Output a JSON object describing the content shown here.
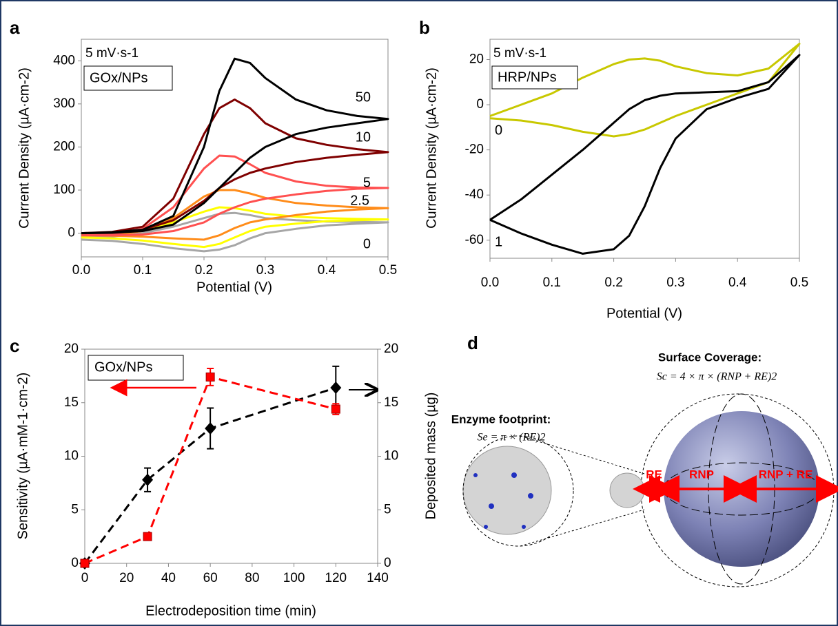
{
  "chart_data": [
    {
      "type": "line",
      "panel_label": "a",
      "annotations": [
        "5 mV·s-1",
        "GOx/NPs"
      ],
      "x_label": "Potential (V)",
      "y_label": "Current Density (µA·cm-2)",
      "xlim": [
        0,
        0.5
      ],
      "xticks": [
        {
          "value": 0,
          "label": "0.0"
        },
        0.1,
        0.2,
        0.3,
        0.4,
        0.5
      ],
      "ylim": [
        -55,
        450
      ],
      "yticks": [
        0,
        100,
        200,
        300,
        400
      ],
      "x": [
        0,
        0.05,
        0.1,
        0.15,
        0.2,
        0.225,
        0.25,
        0.275,
        0.3,
        0.35,
        0.4,
        0.45,
        0.5,
        0.45,
        0.4,
        0.35,
        0.3,
        0.275,
        0.25,
        0.225,
        0.2,
        0.15,
        0.1,
        0.05,
        0
      ],
      "series": [
        {
          "color": "#a6a6a6",
          "values": [
            -10,
            -8,
            0,
            15,
            35,
            45,
            47,
            42,
            35,
            30,
            27,
            26,
            25,
            22,
            18,
            10,
            0,
            -12,
            -28,
            -38,
            -42,
            -35,
            -25,
            -18,
            -15
          ]
        },
        {
          "name": "0",
          "color": "#ffff00",
          "label_color": "#d4d400",
          "values": [
            -3,
            -2,
            8,
            25,
            50,
            60,
            58,
            52,
            45,
            38,
            35,
            33,
            32,
            30,
            28,
            22,
            15,
            5,
            -10,
            -25,
            -32,
            -25,
            -17,
            -12,
            -10
          ]
        },
        {
          "name": "2.5",
          "color": "#ff8c1a",
          "label_color": "#ff8c1a",
          "values": [
            -5,
            -4,
            5,
            35,
            85,
            100,
            100,
            92,
            82,
            70,
            64,
            60,
            58,
            55,
            50,
            42,
            32,
            25,
            12,
            -5,
            -15,
            -12,
            -8,
            -6,
            -5
          ]
        },
        {
          "name": "5",
          "color": "#ff5050",
          "label_color": "#e02020",
          "values": [
            -5,
            -3,
            10,
            60,
            150,
            180,
            178,
            160,
            140,
            120,
            110,
            106,
            105,
            103,
            98,
            90,
            80,
            72,
            60,
            45,
            25,
            5,
            -3,
            -5,
            -5
          ]
        },
        {
          "name": "10",
          "color": "#7f0000",
          "label_color": "#7f0000",
          "values": [
            0,
            3,
            15,
            80,
            230,
            290,
            310,
            290,
            255,
            220,
            205,
            195,
            188,
            182,
            175,
            165,
            150,
            140,
            125,
            105,
            75,
            30,
            8,
            2,
            0
          ]
        },
        {
          "name": "50",
          "color": "#000000",
          "label_color": "#000000",
          "values": [
            0,
            2,
            8,
            40,
            200,
            330,
            405,
            395,
            360,
            310,
            285,
            272,
            265,
            255,
            245,
            230,
            200,
            175,
            140,
            105,
            70,
            20,
            5,
            1,
            0
          ]
        }
      ]
    },
    {
      "type": "line",
      "panel_label": "b",
      "annotations": [
        "5 mV·s-1",
        "HRP/NPs"
      ],
      "x_label": "Potential (V)",
      "y_label": "Current Density (µA·cm-2)",
      "xlim": [
        0,
        0.5
      ],
      "xticks": [
        {
          "value": 0,
          "label": "0.0"
        },
        0.1,
        0.2,
        0.3,
        0.4,
        0.5
      ],
      "ylim": [
        -68,
        29
      ],
      "yticks": [
        -60,
        -40,
        -20,
        0,
        20
      ],
      "x": [
        0,
        0.05,
        0.1,
        0.15,
        0.2,
        0.225,
        0.25,
        0.275,
        0.3,
        0.35,
        0.4,
        0.45,
        0.5,
        0.45,
        0.4,
        0.35,
        0.3,
        0.275,
        0.25,
        0.225,
        0.2,
        0.15,
        0.1,
        0.05,
        0
      ],
      "series": [
        {
          "name": "0",
          "color": "#c8c800",
          "label_color": "#c8c800",
          "values": [
            -5,
            0,
            5,
            12,
            18,
            20,
            20.5,
            19.5,
            17,
            14,
            13,
            16,
            27,
            10,
            5,
            0,
            -5,
            -8,
            -11,
            -13,
            -14,
            -12,
            -9,
            -7,
            -6
          ]
        },
        {
          "name": "1",
          "color": "#000000",
          "label_color": "#000000",
          "values": [
            -51,
            -42,
            -31,
            -20,
            -8,
            -2,
            2,
            4,
            5,
            5.5,
            6,
            10,
            22,
            7,
            3,
            -2,
            -15,
            -28,
            -45,
            -58,
            -64,
            -66,
            -62,
            -57,
            -51
          ]
        }
      ]
    },
    {
      "type": "line",
      "panel_label": "c",
      "annotations": [
        "GOx/NPs"
      ],
      "x_label": "Electrodeposition time (min)",
      "y_label": "Sensitivity (µA·mM-1·cm-2)",
      "y2_label": "Deposited mass (µg)",
      "xlim": [
        0,
        140
      ],
      "xticks": [
        0,
        20,
        40,
        60,
        80,
        100,
        120,
        140
      ],
      "ylim": [
        0,
        20
      ],
      "yticks": [
        0,
        5,
        10,
        15,
        20
      ],
      "y2lim": [
        0,
        20
      ],
      "y2ticks": [
        0,
        5,
        10,
        15,
        20
      ],
      "x": [
        0,
        30,
        60,
        120
      ],
      "series": [
        {
          "color": "#000000",
          "axis": "y2",
          "marker": "diamond",
          "dash": true,
          "values": [
            0,
            7.8,
            12.6,
            16.4
          ],
          "errors": [
            0,
            1.1,
            1.9,
            2.0
          ]
        },
        {
          "color": "#ff0000",
          "marker": "square",
          "dash": true,
          "values": [
            0,
            2.5,
            17.4,
            14.4
          ],
          "errors": [
            0,
            0.3,
            0.8,
            0.5
          ]
        }
      ]
    }
  ],
  "diagram": {
    "panel_label": "d",
    "surface_title": "Surface Coverage:",
    "surface_formula": "Sc = 4 × π × (RNP + RE)2",
    "footprint_title": "Enzyme footprint:",
    "footprint_formula": "Se = π × (RE)2",
    "r_e": "RE",
    "r_np": "RNP",
    "r_sum": "RNP + RE"
  }
}
